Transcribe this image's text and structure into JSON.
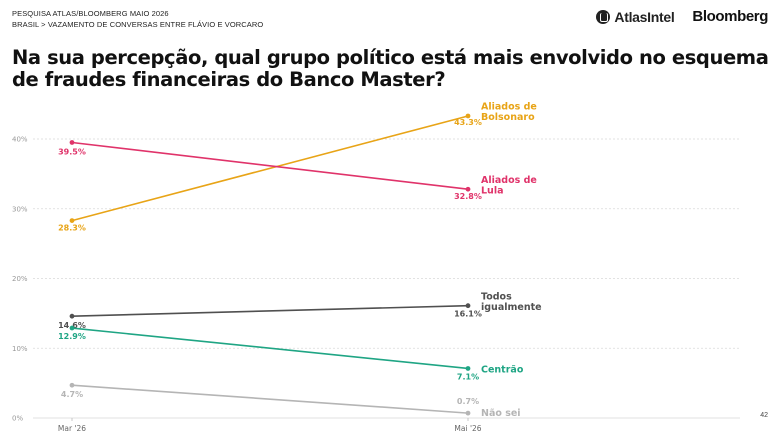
{
  "header": {
    "survey": "PESQUISA ATLAS/BLOOMBERG MAIO 2026",
    "breadcrumb": "BRASIL > VAZAMENTO DE CONVERSAS ENTRE FLÁVIO E VORCARO",
    "logo_atlas": "AtlasIntel",
    "logo_bloomberg": "Bloomberg"
  },
  "title": "Na sua percepção, qual grupo político está mais envolvido no esquema de fraudes financeiras do Banco Master?",
  "page_number": "42",
  "chart_data": {
    "type": "line",
    "x": [
      "Mar '26",
      "Mai '26"
    ],
    "ylim": [
      0,
      45
    ],
    "yticks": [
      0,
      10,
      20,
      30,
      40
    ],
    "ytick_labels": [
      "0%",
      "10%",
      "20%",
      "30%",
      "40%"
    ],
    "grid": true,
    "series": [
      {
        "name": "Aliados de Bolsonaro",
        "name_lines": [
          "Aliados de",
          "Bolsonaro"
        ],
        "values": [
          28.3,
          43.3
        ],
        "value_labels": [
          "28.3%",
          "43.3%"
        ],
        "color": "#E8A417"
      },
      {
        "name": "Aliados de Lula",
        "name_lines": [
          "Aliados de",
          "Lula"
        ],
        "values": [
          39.5,
          32.8
        ],
        "value_labels": [
          "39.5%",
          "32.8%"
        ],
        "color": "#E0336A"
      },
      {
        "name": "Todos igualmente",
        "name_lines": [
          "Todos",
          "igualmente"
        ],
        "values": [
          14.6,
          16.1
        ],
        "value_labels": [
          "14.6%",
          "16.1%"
        ],
        "color": "#505050"
      },
      {
        "name": "Centrão",
        "name_lines": [
          "Centrão"
        ],
        "values": [
          12.9,
          7.1
        ],
        "value_labels": [
          "12.9%",
          "7.1%"
        ],
        "color": "#1FA584"
      },
      {
        "name": "Não sei",
        "name_lines": [
          "Não sei"
        ],
        "values": [
          4.7,
          0.7
        ],
        "value_labels": [
          "4.7%",
          "0.7%"
        ],
        "color": "#B5B5B5"
      }
    ]
  }
}
